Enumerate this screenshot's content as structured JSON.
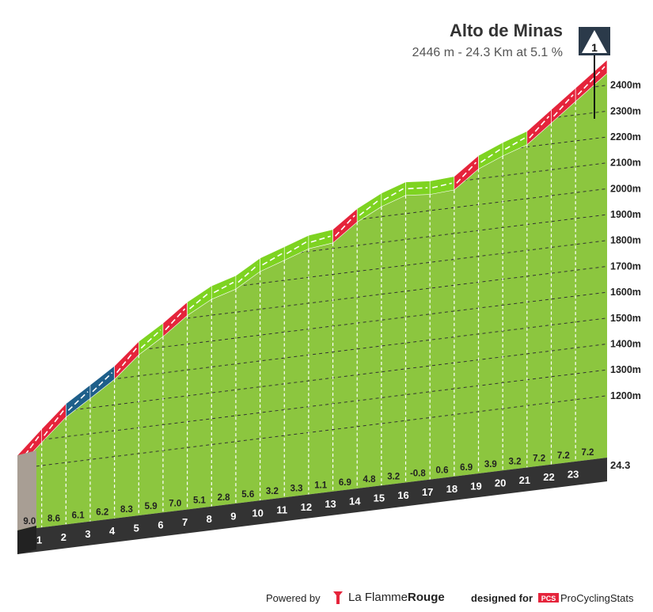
{
  "header": {
    "title": "Alto de Minas",
    "subtitle": "2446 m - 24.3 Km at 5.1 %",
    "marker_number": "1"
  },
  "footer": {
    "powered_by": "Powered by",
    "brand_light": "La Flamme",
    "brand_bold": "Rouge",
    "designed_for": "designed for",
    "pcs_name": "ProCyclingStats",
    "pcs_logo_text": "PCS"
  },
  "colors": {
    "red": "#e5243b",
    "green": "#8cc63f",
    "light_green": "#7ed321",
    "blue": "#1e5f8a",
    "base_dark": "#333333",
    "base_grey": "#a89e94"
  },
  "chart_data": {
    "type": "area",
    "title": "Alto de Minas",
    "subtitle": "2446 m - 24.3 Km at 5.1 %",
    "total_distance_label": "24.3",
    "y_axis_unit": "m",
    "y_ticks": [
      1200,
      1300,
      1400,
      1500,
      1600,
      1700,
      1800,
      1900,
      2000,
      2100,
      2200,
      2300,
      2400
    ],
    "km_labels": [
      "1",
      "2",
      "3",
      "4",
      "5",
      "6",
      "7",
      "8",
      "9",
      "10",
      "11",
      "12",
      "13",
      "14",
      "15",
      "16",
      "17",
      "18",
      "19",
      "20",
      "21",
      "22",
      "23"
    ],
    "gradients": [
      9.0,
      8.6,
      6.1,
      6.2,
      8.3,
      5.9,
      7.0,
      5.1,
      2.8,
      5.6,
      3.2,
      3.3,
      1.1,
      6.9,
      4.8,
      3.2,
      -0.8,
      0.6,
      6.9,
      3.9,
      3.2,
      7.2,
      7.2,
      7.2
    ],
    "gradient_labels": [
      "9.0",
      "8.6",
      "6.1",
      "6.2",
      "8.3",
      "5.9",
      "7.0",
      "5.1",
      "2.8",
      "5.6",
      "3.2",
      "3.3",
      "1.1",
      "6.9",
      "4.8",
      "3.2",
      "-0.8",
      "0.6",
      "6.9",
      "3.9",
      "3.2",
      "7.2",
      "7.2",
      "7.2"
    ],
    "summit_altitude": 2446
  }
}
